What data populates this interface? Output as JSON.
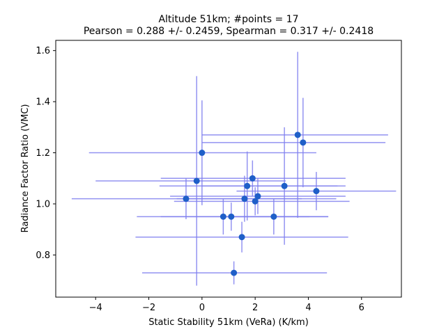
{
  "chart_data": {
    "type": "scatter",
    "title": "Altitude 51km;  #points = 17",
    "subtitle": "Pearson =  0.288 +/-  0.2459, Spearman =  0.317 +/-  0.2418",
    "xlabel": "Static Stability 51km (VeRa) (K/km)",
    "ylabel": "Radiance Factor Ratio (VMC)",
    "xlim": [
      -5.5,
      7.5
    ],
    "ylim": [
      0.635,
      1.64
    ],
    "x_ticks": [
      -4,
      -2,
      0,
      2,
      4,
      6
    ],
    "y_ticks": [
      0.8,
      1.0,
      1.2,
      1.4,
      1.6
    ],
    "x_tick_labels": [
      "−4",
      "−2",
      "0",
      "2",
      "4",
      "6"
    ],
    "y_tick_labels": [
      "0.8",
      "1.0",
      "1.2",
      "1.4",
      "1.6"
    ],
    "grid": false,
    "colors": {
      "point": "#1f5fc8",
      "errorbar": "#8080ee"
    },
    "points": [
      {
        "x": 0.0,
        "y": 1.2,
        "xerr_lo": 4.25,
        "xerr_hi": 4.3,
        "yerr": 0.205
      },
      {
        "x": -0.2,
        "y": 1.09,
        "xerr_lo": 3.8,
        "xerr_hi": 3.35,
        "yerr": 0.41
      },
      {
        "x": -0.6,
        "y": 1.02,
        "xerr_lo": 4.3,
        "xerr_hi": 4.35,
        "yerr": 0.08
      },
      {
        "x": 0.8,
        "y": 0.95,
        "xerr_lo": 3.25,
        "xerr_hi": 3.25,
        "yerr": 0.07
      },
      {
        "x": 1.1,
        "y": 0.95,
        "xerr_lo": 2.65,
        "xerr_hi": 3.65,
        "yerr": 0.055
      },
      {
        "x": 1.5,
        "y": 0.87,
        "xerr_lo": 4.0,
        "xerr_hi": 4.0,
        "yerr": 0.06
      },
      {
        "x": 1.2,
        "y": 0.73,
        "xerr_lo": 3.45,
        "xerr_hi": 3.5,
        "yerr": 0.045
      },
      {
        "x": 1.6,
        "y": 1.02,
        "xerr_lo": 2.55,
        "xerr_hi": 3.45,
        "yerr": 0.09
      },
      {
        "x": 1.7,
        "y": 1.07,
        "xerr_lo": 3.3,
        "xerr_hi": 3.7,
        "yerr": 0.135
      },
      {
        "x": 1.9,
        "y": 1.1,
        "xerr_lo": 3.45,
        "xerr_hi": 3.5,
        "yerr": 0.07
      },
      {
        "x": 2.0,
        "y": 1.01,
        "xerr_lo": 3.05,
        "xerr_hi": 3.55,
        "yerr": 0.055
      },
      {
        "x": 2.1,
        "y": 1.03,
        "xerr_lo": 3.3,
        "xerr_hi": 3.3,
        "yerr": 0.07
      },
      {
        "x": 2.7,
        "y": 0.95,
        "xerr_lo": 2.0,
        "xerr_hi": 2.05,
        "yerr": 0.07
      },
      {
        "x": 3.1,
        "y": 1.07,
        "xerr_lo": 3.1,
        "xerr_hi": 2.0,
        "yerr": 0.23
      },
      {
        "x": 3.6,
        "y": 1.27,
        "xerr_lo": 3.6,
        "xerr_hi": 3.4,
        "yerr": 0.325
      },
      {
        "x": 3.8,
        "y": 1.24,
        "xerr_lo": 3.8,
        "xerr_hi": 3.1,
        "yerr": 0.175
      },
      {
        "x": 4.3,
        "y": 1.05,
        "xerr_lo": 3.0,
        "xerr_hi": 3.0,
        "yerr": 0.075
      }
    ]
  }
}
